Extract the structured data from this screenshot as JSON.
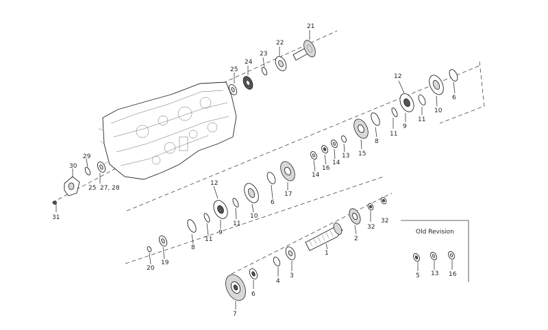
{
  "diagram": {
    "callouts": [
      {
        "id": "c21",
        "text": "21"
      },
      {
        "id": "c22",
        "text": "22"
      },
      {
        "id": "c23",
        "text": "23"
      },
      {
        "id": "c24",
        "text": "24"
      },
      {
        "id": "c25",
        "text": "25"
      },
      {
        "id": "c12a",
        "text": "12"
      },
      {
        "id": "c6a",
        "text": "6"
      },
      {
        "id": "c10a",
        "text": "10"
      },
      {
        "id": "c11a",
        "text": "11"
      },
      {
        "id": "c9a",
        "text": "9"
      },
      {
        "id": "c11b",
        "text": "11"
      },
      {
        "id": "c8a",
        "text": "8"
      },
      {
        "id": "c15",
        "text": "15"
      },
      {
        "id": "c13a",
        "text": "13"
      },
      {
        "id": "c14a",
        "text": "14"
      },
      {
        "id": "c16a",
        "text": "16"
      },
      {
        "id": "c14b",
        "text": "14"
      },
      {
        "id": "c17",
        "text": "17"
      },
      {
        "id": "c6b",
        "text": "6"
      },
      {
        "id": "c12b",
        "text": "12"
      },
      {
        "id": "c10b",
        "text": "10"
      },
      {
        "id": "c11c",
        "text": "11"
      },
      {
        "id": "c9b",
        "text": "9"
      },
      {
        "id": "c11d",
        "text": "11"
      },
      {
        "id": "c8b",
        "text": "8"
      },
      {
        "id": "c19",
        "text": "19"
      },
      {
        "id": "c20",
        "text": "20"
      },
      {
        "id": "c29",
        "text": "29"
      },
      {
        "id": "c30",
        "text": "30"
      },
      {
        "id": "c25b",
        "text": "25"
      },
      {
        "id": "c2728",
        "text": "27, 28"
      },
      {
        "id": "c31",
        "text": "31"
      },
      {
        "id": "c32a",
        "text": "32"
      },
      {
        "id": "c32b",
        "text": "32"
      },
      {
        "id": "c2",
        "text": "2"
      },
      {
        "id": "c1",
        "text": "1"
      },
      {
        "id": "c3",
        "text": "3"
      },
      {
        "id": "c4",
        "text": "4"
      },
      {
        "id": "c5",
        "text": "5"
      },
      {
        "id": "c7",
        "text": "7"
      },
      {
        "id": "c6c",
        "text": "6"
      },
      {
        "id": "c13b",
        "text": "13"
      },
      {
        "id": "c16b",
        "text": "16"
      }
    ],
    "old_revision_label": "Old Revision"
  }
}
